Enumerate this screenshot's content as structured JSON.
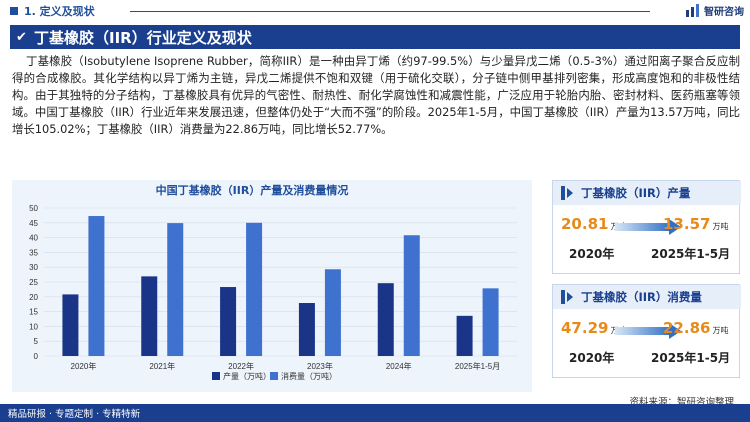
{
  "header": {
    "section": "1. 定义及现状",
    "brand": "智研咨询"
  },
  "banner": {
    "title": "丁基橡胶（IIR）行业定义及现状"
  },
  "intro": {
    "text": "丁基橡胶（Isobutylene Isoprene Rubber，简称IIR）是一种由异丁烯（约97-99.5%）与少量异戊二烯（0.5-3%）通过阳离子聚合反应制得的合成橡胶。其化学结构以异丁烯为主链，异戊二烯提供不饱和双键（用于硫化交联），分子链中侧甲基排列密集，形成高度饱和的非极性结构。由于其独特的分子结构，丁基橡胶具有优异的气密性、耐热性、耐化学腐蚀性和减震性能，广泛应用于轮胎内胎、密封材料、医药瓶塞等领域。中国丁基橡胶（IIR）行业近年来发展迅速，但整体仍处于“大而不强”的阶段。2025年1-5月，中国丁基橡胶（IIR）产量为13.57万吨，同比增长105.02%；丁基橡胶（IIR）消费量为22.86万吨，同比增长52.77%。"
  },
  "chart_data": {
    "type": "bar",
    "title": "中国丁基橡胶（IIR）产量及消费量情况",
    "categories": [
      "2020年",
      "2021年",
      "2022年",
      "2023年",
      "2024年",
      "2025年1-5月"
    ],
    "series": [
      {
        "name": "产量（万吨）",
        "values": [
          20.81,
          26.9,
          23.3,
          17.9,
          24.6,
          13.57
        ],
        "color": "#1a3488"
      },
      {
        "name": "消费量（万吨）",
        "values": [
          47.29,
          44.9,
          45.0,
          29.3,
          40.8,
          22.86
        ],
        "color": "#3f72cf"
      }
    ],
    "yticks": [
      "0",
      "5",
      "10",
      "15",
      "20",
      "25",
      "30",
      "35",
      "40",
      "45",
      "50"
    ],
    "ylim": [
      0,
      50
    ],
    "grid": true,
    "legend_position": "bottom"
  },
  "cards": [
    {
      "title": "丁基橡胶（IIR）产量",
      "left_value": "20.81",
      "left_unit": "万吨",
      "right_value": "13.57",
      "right_unit": "万吨",
      "left_year": "2020年",
      "right_year": "2025年1-5月"
    },
    {
      "title": "丁基橡胶（IIR）消费量",
      "left_value": "47.29",
      "left_unit": "万吨",
      "right_value": "22.86",
      "right_unit": "万吨",
      "left_year": "2020年",
      "right_year": "2025年1-5月"
    }
  ],
  "footer": {
    "tagline": "精品研报 · 专题定制 · 专精特新",
    "source": "资料来源：智研咨询整理"
  },
  "colors": {
    "primary": "#1a3f8f",
    "accent_orange": "#e88a1a",
    "bar_production": "#1a3488",
    "bar_consumption": "#3f72cf"
  }
}
